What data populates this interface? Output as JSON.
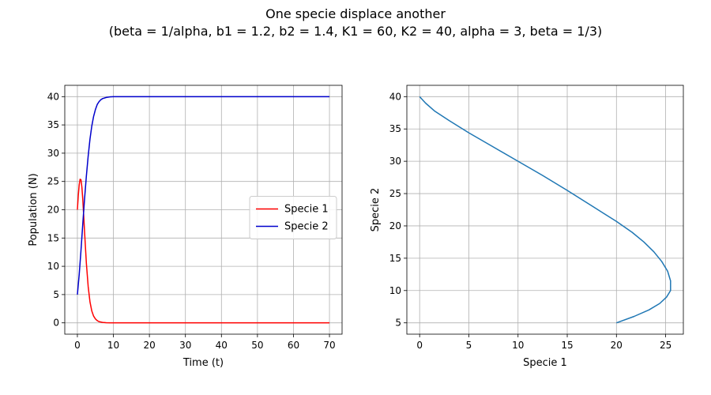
{
  "figure": {
    "title_line1": "One specie displace another",
    "title_line2": "(beta = 1/alpha, b1 = 1.2, b2 = 1.4, K1 = 60, K2 = 40, alpha = 3, beta = 1/3)"
  },
  "chart_data": [
    {
      "type": "line",
      "xlabel": "Time (t)",
      "ylabel": "Population (N)",
      "xlim": [
        -3.5,
        73.5
      ],
      "ylim": [
        -2,
        42
      ],
      "xticks": [
        0,
        10,
        20,
        30,
        40,
        50,
        60,
        70
      ],
      "yticks": [
        0,
        5,
        10,
        15,
        20,
        25,
        30,
        35,
        40
      ],
      "grid": true,
      "legend": "center-right",
      "series": [
        {
          "name": "Specie 1",
          "color": "#ff0000",
          "x": [
            0,
            0.25,
            0.5,
            0.75,
            1.0,
            1.25,
            1.5,
            1.75,
            2.0,
            2.5,
            3.0,
            3.5,
            4.0,
            4.5,
            5.0,
            5.5,
            6.0,
            7.0,
            8.0,
            9.0,
            10.0,
            15,
            20,
            30,
            40,
            50,
            60,
            70
          ],
          "y": [
            20,
            22.5,
            24.4,
            25.4,
            25.3,
            24.0,
            21.8,
            19.0,
            16.0,
            10.5,
            6.4,
            3.7,
            2.1,
            1.2,
            0.7,
            0.4,
            0.22,
            0.08,
            0.03,
            0.01,
            0.0,
            0,
            0,
            0,
            0,
            0,
            0,
            0
          ]
        },
        {
          "name": "Specie 2",
          "color": "#0000cc",
          "x": [
            0,
            0.5,
            1.0,
            1.5,
            2.0,
            2.5,
            3.0,
            3.5,
            4.0,
            4.5,
            5.0,
            5.5,
            6.0,
            6.5,
            7.0,
            8.0,
            9.0,
            10.0,
            15,
            20,
            30,
            40,
            50,
            60,
            70
          ],
          "y": [
            5,
            8.5,
            12.8,
            17.5,
            22.0,
            26.0,
            29.5,
            32.5,
            34.8,
            36.5,
            37.7,
            38.6,
            39.1,
            39.45,
            39.65,
            39.85,
            39.95,
            40.0,
            40,
            40,
            40,
            40,
            40,
            40,
            40
          ]
        }
      ]
    },
    {
      "type": "line",
      "xlabel": "Specie 1",
      "ylabel": "Specie 2",
      "xlim": [
        -1.3,
        26.8
      ],
      "ylim": [
        3.25,
        41.75
      ],
      "xticks": [
        0,
        5,
        10,
        15,
        20,
        25
      ],
      "yticks": [
        5,
        10,
        15,
        20,
        25,
        30,
        35,
        40
      ],
      "grid": true,
      "series": [
        {
          "color": "#1f77b4",
          "x": [
            20.0,
            21.8,
            23.3,
            24.4,
            25.1,
            25.5,
            25.5,
            25.2,
            24.6,
            23.8,
            22.8,
            21.6,
            20.0,
            17.6,
            15.0,
            12.5,
            10.0,
            7.5,
            5.0,
            3.0,
            1.5,
            0.6,
            0.0
          ],
          "y": [
            5.0,
            6.0,
            7.0,
            8.0,
            9.0,
            10.0,
            11.5,
            13.0,
            14.5,
            16.0,
            17.5,
            19.0,
            20.7,
            23.0,
            25.5,
            27.8,
            30.0,
            32.2,
            34.4,
            36.3,
            37.8,
            39.0,
            40.0
          ]
        }
      ]
    }
  ]
}
